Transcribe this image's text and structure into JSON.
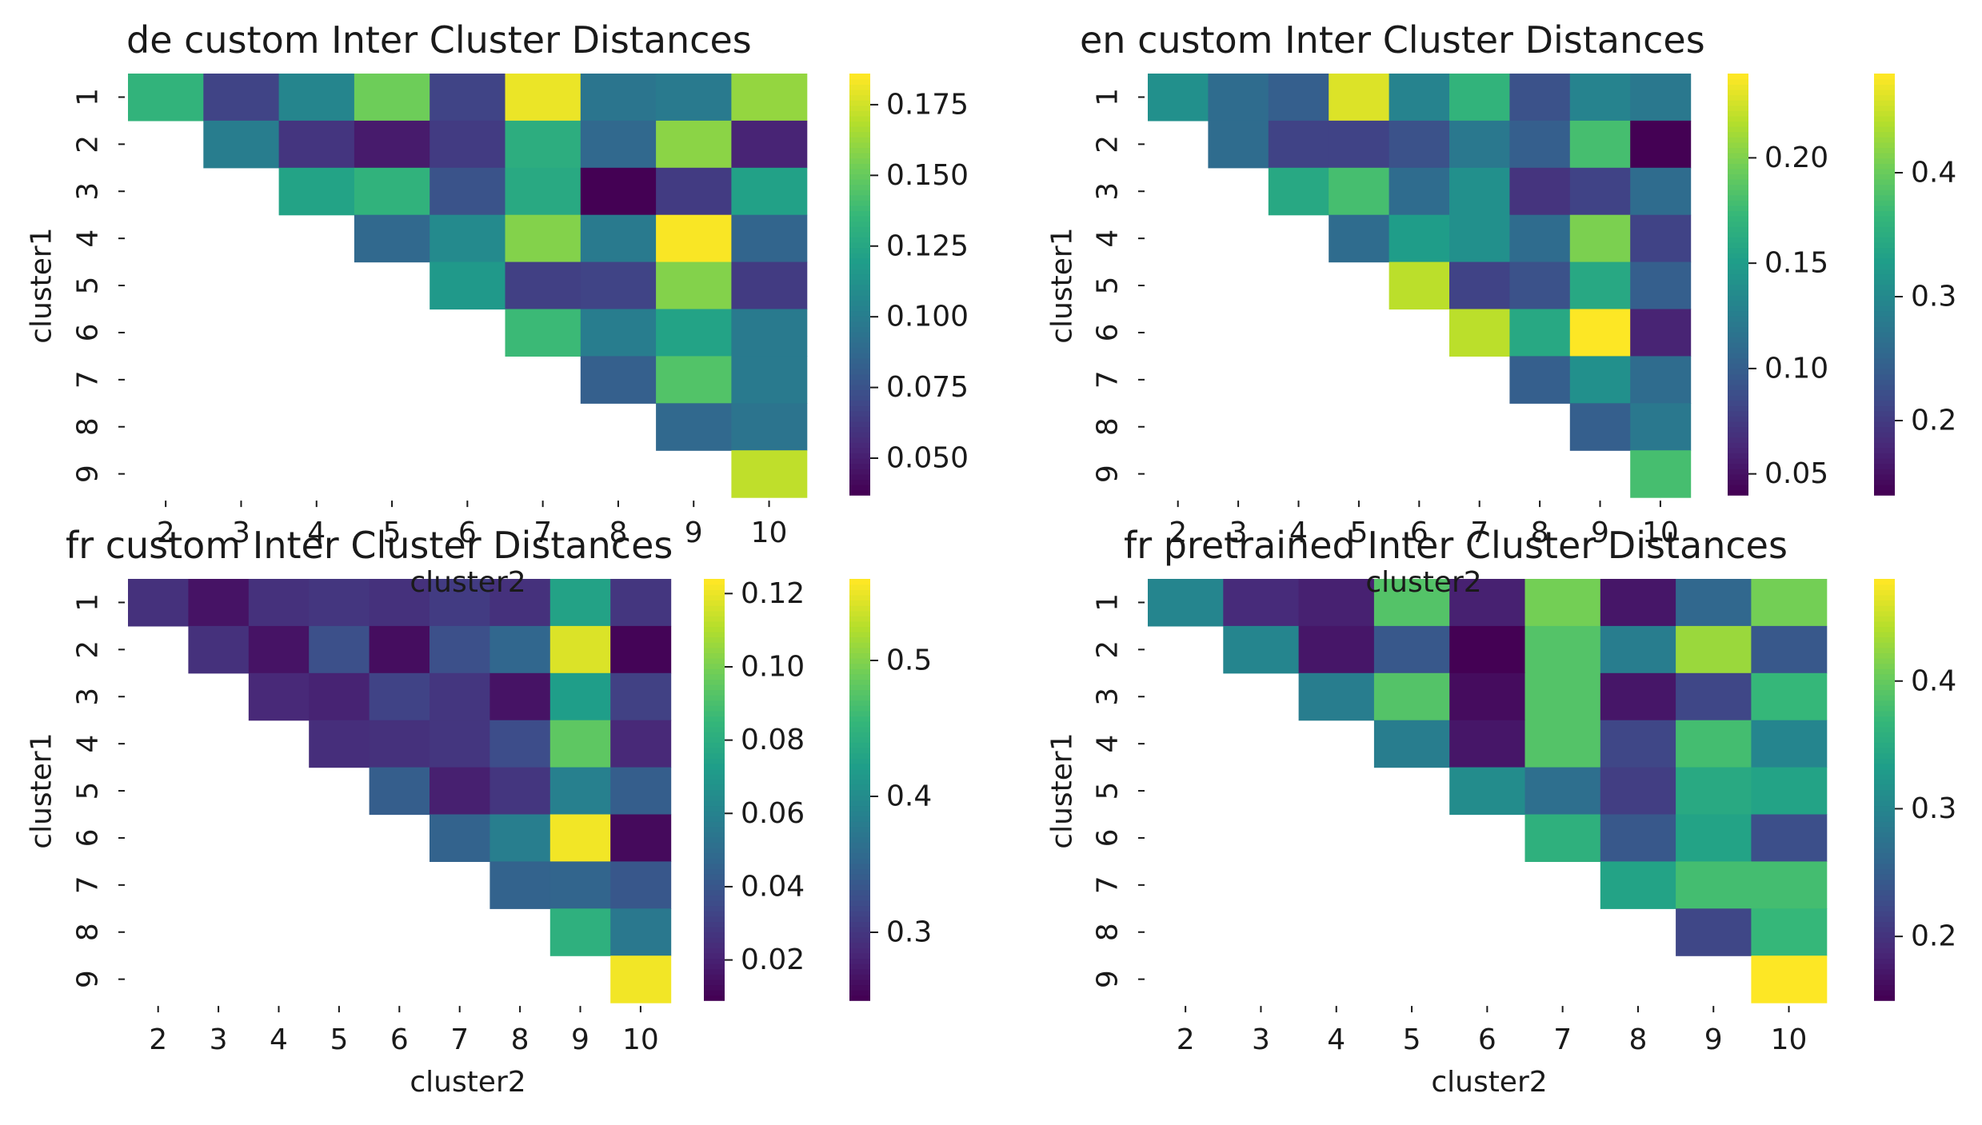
{
  "chart_data": [
    {
      "type": "heatmap",
      "title": "de custom Inter Cluster Distances",
      "xlabel": "",
      "ylabel": "cluster1",
      "x_ticks": [
        "2",
        "3",
        "4",
        "5",
        "6",
        "7",
        "8",
        "9",
        "10"
      ],
      "y_ticks": [
        "1",
        "2",
        "3",
        "4",
        "5",
        "6",
        "7",
        "8",
        "9"
      ],
      "values": [
        [
          0.134,
          0.067,
          0.105,
          0.153,
          0.067,
          0.182,
          0.095,
          0.098,
          0.162
        ],
        [
          null,
          0.1,
          0.06,
          0.048,
          0.063,
          0.13,
          0.087,
          0.16,
          0.052
        ],
        [
          null,
          null,
          0.123,
          0.133,
          0.075,
          0.127,
          0.037,
          0.063,
          0.122
        ],
        [
          null,
          null,
          null,
          0.087,
          0.108,
          0.158,
          0.098,
          0.185,
          0.085
        ],
        [
          null,
          null,
          null,
          null,
          0.117,
          0.065,
          0.067,
          0.158,
          0.063
        ],
        [
          null,
          null,
          null,
          null,
          null,
          0.138,
          0.1,
          0.123,
          0.098
        ],
        [
          null,
          null,
          null,
          null,
          null,
          null,
          0.082,
          0.145,
          0.098
        ],
        [
          null,
          null,
          null,
          null,
          null,
          null,
          null,
          0.087,
          0.094
        ],
        [
          null,
          null,
          null,
          null,
          null,
          null,
          null,
          null,
          0.172
        ]
      ],
      "colorbars": [
        {
          "range": [
            0.037,
            0.186
          ],
          "ticks": [
            "0.050",
            "0.075",
            "0.100",
            "0.125",
            "0.150",
            "0.175"
          ]
        }
      ],
      "colormap": "viridis"
    },
    {
      "type": "heatmap",
      "title": "en custom Inter Cluster Distances",
      "xlabel": "",
      "ylabel": "cluster1",
      "x_ticks": [
        "2",
        "3",
        "4",
        "5",
        "6",
        "7",
        "8",
        "9",
        "10"
      ],
      "y_ticks": [
        "1",
        "2",
        "3",
        "4",
        "5",
        "6",
        "7",
        "8",
        "9"
      ],
      "values": [
        [
          0.14,
          0.11,
          0.1,
          0.23,
          0.13,
          0.17,
          0.09,
          0.13,
          0.12
        ],
        [
          null,
          0.11,
          0.08,
          0.08,
          0.09,
          0.12,
          0.1,
          0.18,
          0.04
        ],
        [
          null,
          null,
          0.16,
          0.18,
          0.11,
          0.14,
          0.07,
          0.08,
          0.11
        ],
        [
          null,
          null,
          null,
          0.11,
          0.15,
          0.14,
          0.11,
          0.2,
          0.08
        ],
        [
          null,
          null,
          null,
          null,
          0.22,
          0.08,
          0.09,
          0.16,
          0.1
        ],
        [
          null,
          null,
          null,
          null,
          null,
          0.22,
          0.16,
          0.24,
          0.06
        ],
        [
          null,
          null,
          null,
          null,
          null,
          null,
          0.1,
          0.14,
          0.11
        ],
        [
          null,
          null,
          null,
          null,
          null,
          null,
          null,
          0.1,
          0.12
        ],
        [
          null,
          null,
          null,
          null,
          null,
          null,
          null,
          null,
          0.18
        ]
      ],
      "colorbars": [
        {
          "range": [
            0.04,
            0.24
          ],
          "ticks": [
            "0.05",
            "0.10",
            "0.15",
            "0.20"
          ]
        },
        {
          "range": [
            0.14,
            0.48
          ],
          "ticks": [
            "0.2",
            "0.3",
            "0.4"
          ]
        }
      ],
      "colormap": "viridis"
    },
    {
      "type": "heatmap",
      "title": "fr custom Inter Cluster Distances",
      "xlabel": "",
      "ylabel": "cluster1",
      "x_ticks": [
        "2",
        "3",
        "4",
        "5",
        "6",
        "7",
        "8",
        "9",
        "10"
      ],
      "y_ticks": [
        "1",
        "2",
        "3",
        "4",
        "5",
        "6",
        "7",
        "8",
        "9"
      ],
      "values": [
        [
          0.025,
          0.015,
          0.025,
          0.027,
          0.025,
          0.029,
          0.025,
          0.075,
          0.027
        ],
        [
          null,
          0.025,
          0.015,
          0.037,
          0.013,
          0.037,
          0.047,
          0.118,
          0.01
        ],
        [
          null,
          null,
          0.022,
          0.02,
          0.032,
          0.027,
          0.015,
          0.073,
          0.031
        ],
        [
          null,
          null,
          null,
          0.024,
          0.025,
          0.027,
          0.036,
          0.095,
          0.022
        ],
        [
          null,
          null,
          null,
          null,
          0.043,
          0.019,
          0.027,
          0.059,
          0.043
        ],
        [
          null,
          null,
          null,
          null,
          null,
          0.045,
          0.058,
          0.122,
          0.012
        ],
        [
          null,
          null,
          null,
          null,
          null,
          null,
          0.045,
          0.046,
          0.04
        ],
        [
          null,
          null,
          null,
          null,
          null,
          null,
          null,
          0.082,
          0.055
        ],
        [
          null,
          null,
          null,
          null,
          null,
          null,
          null,
          null,
          0.122
        ]
      ],
      "colorbars": [
        {
          "range": [
            0.009,
            0.124
          ],
          "ticks": [
            "0.02",
            "0.04",
            "0.06",
            "0.08",
            "0.10",
            "0.12"
          ]
        },
        {
          "range": [
            0.25,
            0.56
          ],
          "ticks": [
            "0.3",
            "0.4",
            "0.5"
          ]
        }
      ],
      "colormap": "viridis"
    },
    {
      "type": "heatmap",
      "title": "fr pretrained Inter Cluster Distances",
      "xlabel": "cluster2",
      "ylabel": "cluster1",
      "x_ticks": [
        "2",
        "3",
        "4",
        "5",
        "6",
        "7",
        "8",
        "9",
        "10"
      ],
      "y_ticks": [
        "1",
        "2",
        "3",
        "4",
        "5",
        "6",
        "7",
        "8",
        "9"
      ],
      "values": [
        [
          0.3,
          0.19,
          0.18,
          0.39,
          0.18,
          0.41,
          0.17,
          0.26,
          0.41
        ],
        [
          null,
          0.3,
          0.17,
          0.24,
          0.15,
          0.39,
          0.29,
          0.43,
          0.24
        ],
        [
          null,
          null,
          0.29,
          0.39,
          0.16,
          0.39,
          0.17,
          0.22,
          0.37
        ],
        [
          null,
          null,
          null,
          0.29,
          0.17,
          0.39,
          0.22,
          0.38,
          0.3
        ],
        [
          null,
          null,
          null,
          null,
          0.31,
          0.27,
          0.21,
          0.35,
          0.34
        ],
        [
          null,
          null,
          null,
          null,
          null,
          0.36,
          0.24,
          0.34,
          0.23
        ],
        [
          null,
          null,
          null,
          null,
          null,
          null,
          0.34,
          0.38,
          0.38
        ],
        [
          null,
          null,
          null,
          null,
          null,
          null,
          null,
          0.22,
          0.37
        ],
        [
          null,
          null,
          null,
          null,
          null,
          null,
          null,
          null,
          0.48
        ]
      ],
      "colorbars": [
        {
          "range": [
            0.15,
            0.48
          ],
          "ticks": [
            "0.2",
            "0.3",
            "0.4"
          ]
        }
      ],
      "colormap": "viridis"
    }
  ],
  "shared_labels": {
    "xlabel_left": "cluster2",
    "xlabel_right": "cluster2"
  }
}
